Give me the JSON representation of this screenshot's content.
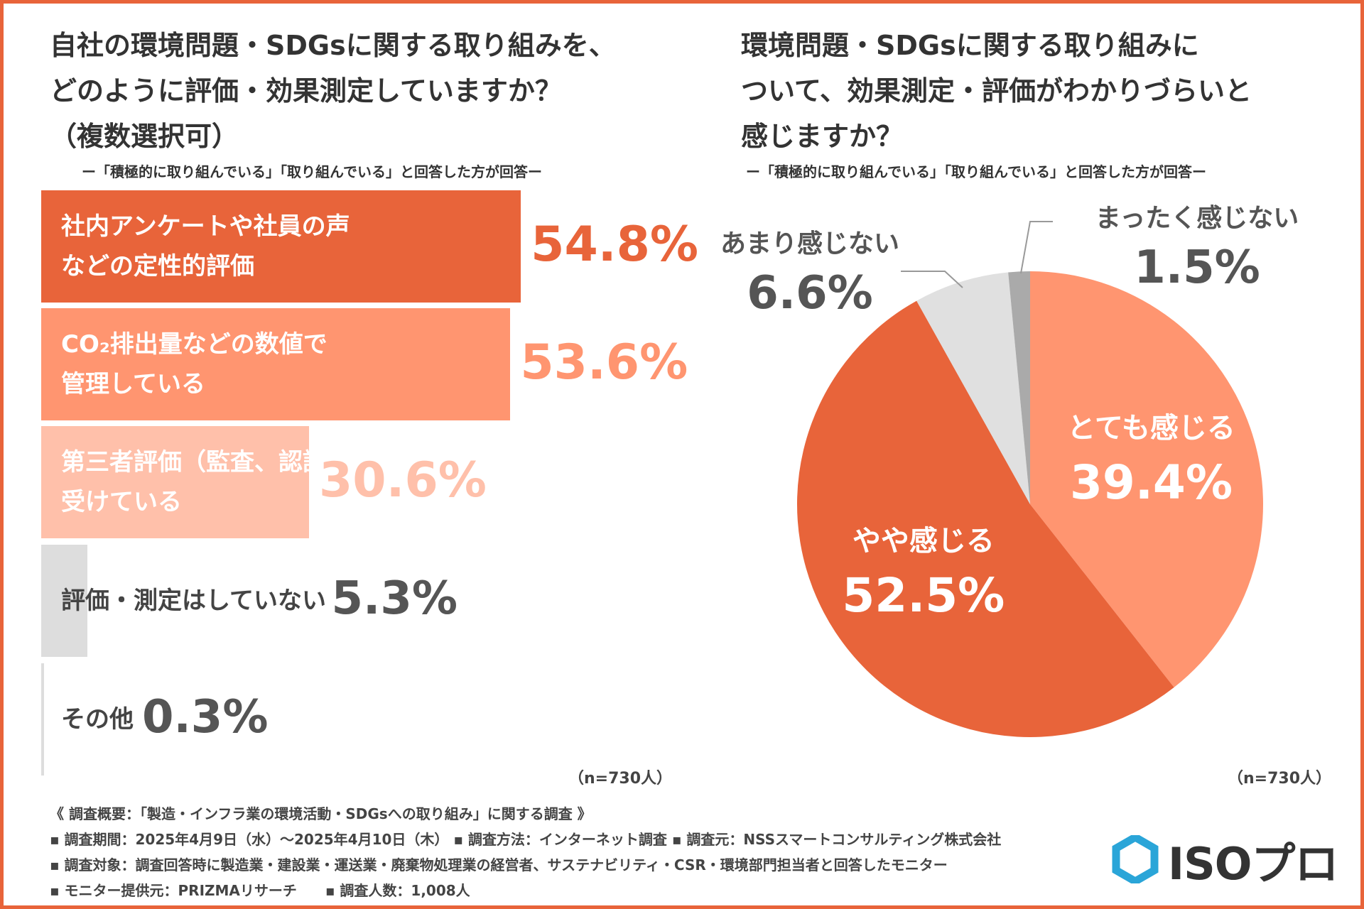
{
  "left": {
    "title_lines": [
      "自社の環境問題・SDGsに関する取り組みを、",
      "どのように評価・効果測定していますか？",
      "（複数選択可）"
    ],
    "subtitle": "ー「積極的に取り組んでいる」「取り組んでいる」と回答した方が回答ー",
    "n": "（n=730人）"
  },
  "right": {
    "title_lines": [
      "環境問題・SDGsに関する取り組みに",
      "ついて、効果測定・評価がわかりづらいと",
      "感じますか？"
    ],
    "subtitle": "ー「積極的に取り組んでいる」「取り組んでいる」と回答した方が回答ー",
    "n": "（n=730人）"
  },
  "chart_data": [
    {
      "type": "bar",
      "orientation": "horizontal",
      "categories": [
        "社内アンケートや社員の声などの定性的評価",
        "CO₂排出量などの数値で管理している",
        "第三者評価（監査、認証など）を受けている",
        "評価・測定はしていない",
        "その他"
      ],
      "label_lines": [
        [
          "社内アンケートや社員の声",
          "などの定性的評価"
        ],
        [
          "CO₂排出量などの数値で",
          "管理している"
        ],
        [
          "第三者評価（監査、認証など）を",
          "受けている"
        ],
        [
          "評価・測定はしていない"
        ],
        [
          "その他"
        ]
      ],
      "values": [
        54.8,
        53.6,
        30.6,
        5.3,
        0.3
      ],
      "value_labels": [
        "54.8%",
        "53.6%",
        "30.6%",
        "5.3%",
        "0.3%"
      ],
      "colors": [
        "#E8643A",
        "#FF9570",
        "#FFC0AA",
        "#DDDDDD",
        "#DDDDDD"
      ],
      "value_colors": [
        "#E8643A",
        "#FF9570",
        "#FFC0AA",
        "#555555",
        "#555555"
      ],
      "label_colors": [
        "#ffffff",
        "#ffffff",
        "#ffffff",
        "#444444",
        "#444444"
      ],
      "xlim": [
        0,
        100
      ]
    },
    {
      "type": "pie",
      "categories": [
        "とても感じる",
        "やや感じる",
        "あまり感じない",
        "まったく感じない"
      ],
      "values": [
        39.4,
        52.5,
        6.6,
        1.5
      ],
      "value_labels": [
        "39.4%",
        "52.5%",
        "6.6%",
        "1.5%"
      ],
      "colors": [
        "#FF9570",
        "#E8643A",
        "#E0E0E0",
        "#AAAAAA"
      ]
    }
  ],
  "footer": {
    "lines": [
      "《 調査概要：「製造・インフラ業の環境活動・SDGsへの取り組み」に関する調査 》",
      "▪ 調査期間：2025年4月9日（水）～2025年4月10日（木） ▪ 調査方法：インターネット調査 ▪ 調査元：NSSスマートコンサルティング株式会社",
      "▪ 調査対象：調査回答時に製造業・建設業・運送業・廃棄物処理業の経営者、サステナビリティ・CSR・環境部門担当者と回答したモニター",
      "▪ モニター提供元：PRIZMAリサーチ　　▪ 調査人数：1,008人"
    ]
  },
  "logo": {
    "text": "ISOプロ",
    "color": "#2AA5D8"
  },
  "colors": {
    "frame": "#E8643A"
  }
}
